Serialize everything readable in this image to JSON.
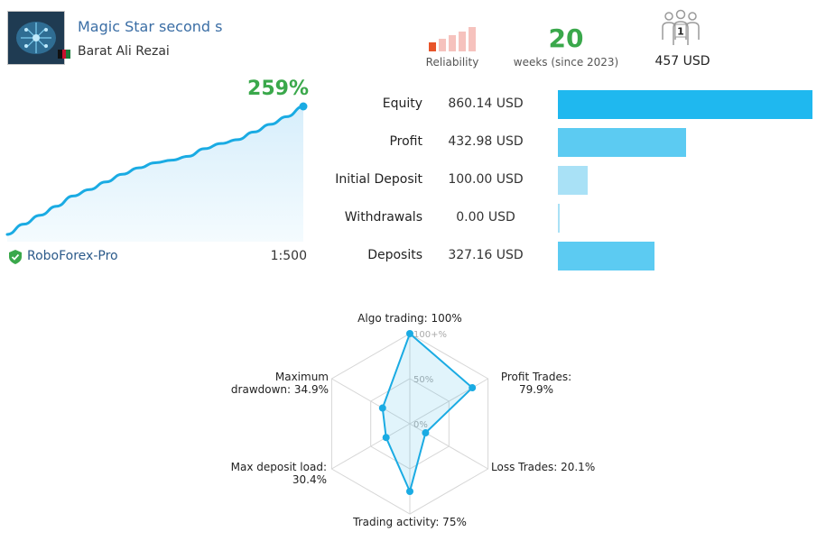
{
  "signal": {
    "name": "Magic Star second s",
    "author": "Barat Ali Rezai"
  },
  "header": {
    "reliability_label": "Reliability",
    "weeks_value": "20",
    "weeks_label": "weeks (since 2023)",
    "subscribers_count": "1",
    "subscription_price": "457 USD"
  },
  "growth": {
    "percent": "259%",
    "broker": "RoboForex-Pro",
    "leverage": "1:500",
    "curve": [
      0,
      8,
      15,
      22,
      30,
      35,
      41,
      47,
      52,
      56,
      58,
      61,
      67,
      71,
      74,
      80,
      86,
      92,
      100
    ]
  },
  "stats": [
    {
      "label": "Equity",
      "value": "860.14 USD",
      "amount": 860.14,
      "color": "#1fb8ef"
    },
    {
      "label": "Profit",
      "value": "432.98 USD",
      "amount": 432.98,
      "color": "#5ccbf2"
    },
    {
      "label": "Initial Deposit",
      "value": "100.00 USD",
      "amount": 100.0,
      "color": "#a9e1f6"
    },
    {
      "label": "Withdrawals",
      "value": "0.00 USD",
      "amount": 0.0,
      "color": "#a9e1f6"
    },
    {
      "label": "Deposits",
      "value": "327.16 USD",
      "amount": 327.16,
      "color": "#5ccbf2"
    }
  ],
  "radar": {
    "scale_labels": [
      "100+%",
      "50%",
      "0%"
    ],
    "axes": [
      {
        "label_lines": [
          "Algo trading: 100%"
        ],
        "value": 100
      },
      {
        "label_lines": [
          "Profit Trades:",
          "79.9%"
        ],
        "value": 79.9
      },
      {
        "label_lines": [
          "Loss Trades: 20.1%"
        ],
        "value": 20.1
      },
      {
        "label_lines": [
          "Trading activity: 75%"
        ],
        "value": 75
      },
      {
        "label_lines": [
          "Max deposit load:",
          "30.4%"
        ],
        "value": 30.4
      },
      {
        "label_lines": [
          "Maximum",
          "drawdown: 34.9%"
        ],
        "value": 34.9
      }
    ]
  },
  "colors": {
    "accent": "#1aabe3",
    "positive": "#3aa84b",
    "link": "#3b6ea5",
    "reliability_active": "#e8542a",
    "reliability_inactive": "#f6c2bd"
  },
  "icons": {
    "avatar": "brain-circuit-avatar",
    "flag": "afghanistan-flag-icon",
    "reliability": "signal-bars-icon",
    "subscribers": "people-group-icon",
    "broker": "shield-check-icon"
  }
}
